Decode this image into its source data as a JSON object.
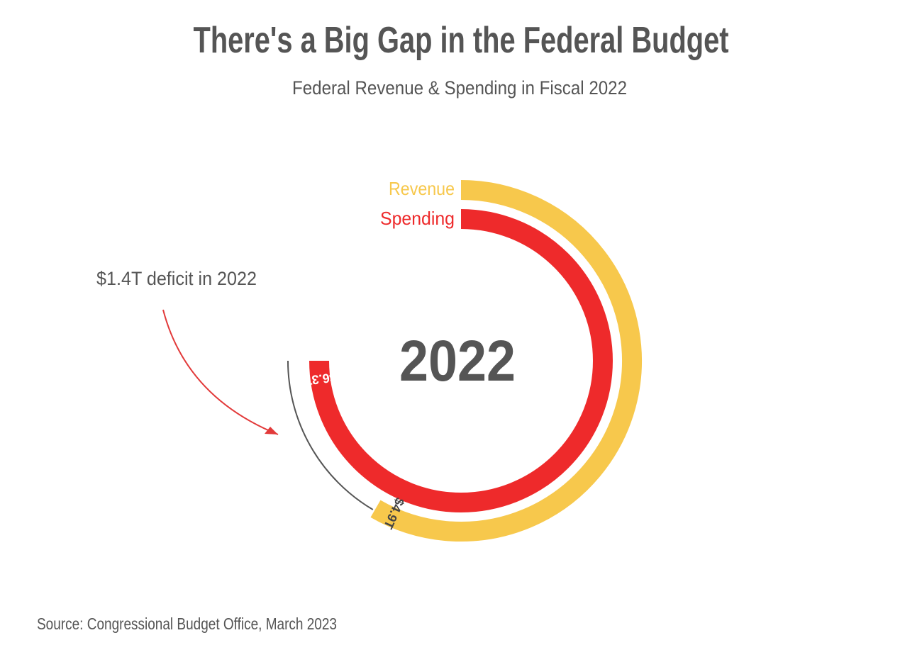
{
  "title": "There's a Big Gap in the Federal Budget",
  "subtitle": "Federal Revenue & Spending in Fiscal 2022",
  "source": "Source: Congressional Budget Office, March 2023",
  "annotation": "$1.4T deficit in 2022",
  "colors": {
    "revenue": "#f7c84c",
    "spending": "#ee2a2b",
    "text": "#555555",
    "gap_line": "#555555",
    "arrow": "#e23a3a"
  },
  "chart_data": {
    "type": "radial-bar",
    "center_label": "2022",
    "max_value": 6.3,
    "series": [
      {
        "name": "Revenue",
        "value": 4.9,
        "label": "$4.9T",
        "color": "#f7c84c"
      },
      {
        "name": "Spending",
        "value": 6.3,
        "label": "$6.3T",
        "color": "#ee2a2b"
      }
    ],
    "deficit": {
      "value": 1.4,
      "label": "$1.4T deficit in 2022"
    }
  }
}
